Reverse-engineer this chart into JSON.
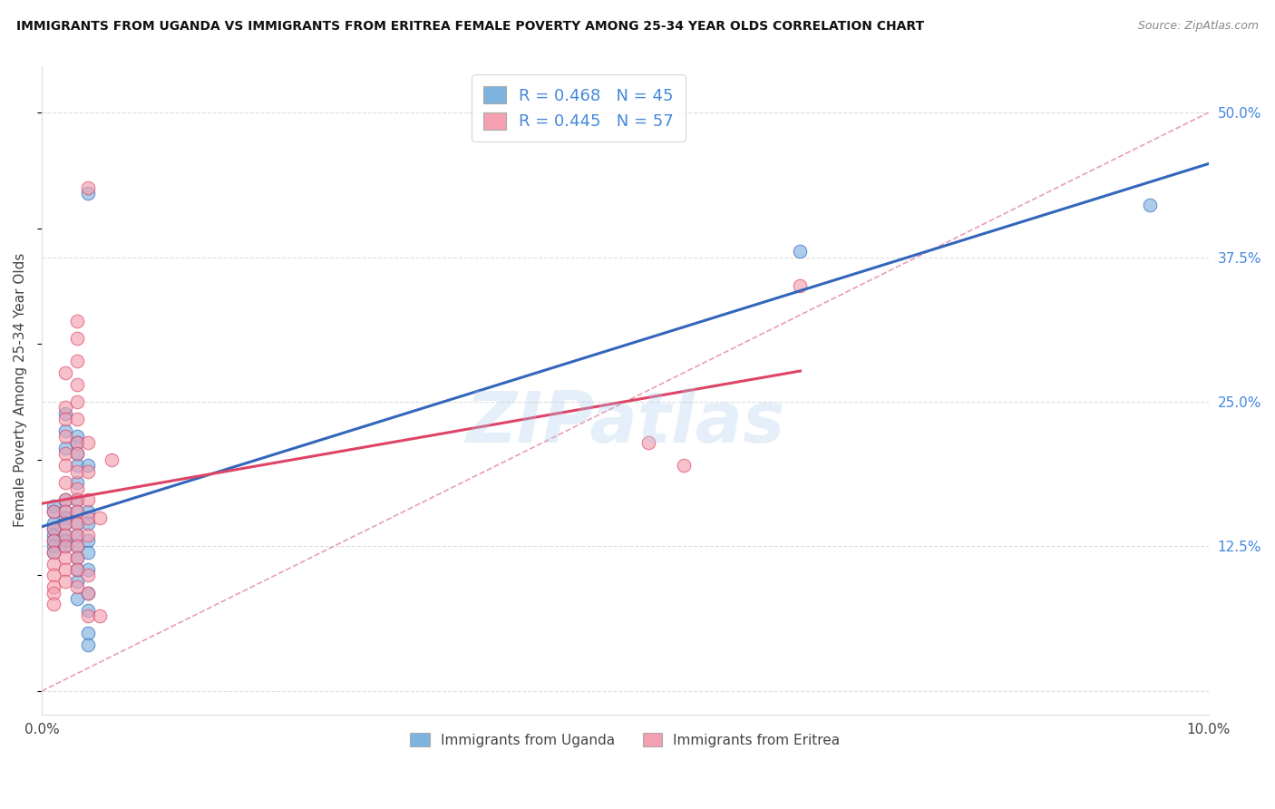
{
  "title": "IMMIGRANTS FROM UGANDA VS IMMIGRANTS FROM ERITREA FEMALE POVERTY AMONG 25-34 YEAR OLDS CORRELATION CHART",
  "source": "Source: ZipAtlas.com",
  "ylabel": "Female Poverty Among 25-34 Year Olds",
  "xlim": [
    0.0,
    0.1
  ],
  "ylim": [
    -0.02,
    0.54
  ],
  "uganda_color": "#7EB3E0",
  "eritrea_color": "#F4A0B0",
  "uganda_line_color": "#3366BB",
  "eritrea_line_color": "#DD4466",
  "diag_color": "#DDAAAA",
  "background_color": "#FFFFFF",
  "watermark": "ZIPatlas",
  "legend_uganda_R": 0.468,
  "legend_uganda_N": 45,
  "legend_eritrea_R": 0.445,
  "legend_eritrea_N": 57,
  "uganda_points": [
    [
      0.001,
      0.16
    ],
    [
      0.001,
      0.155
    ],
    [
      0.001,
      0.145
    ],
    [
      0.001,
      0.14
    ],
    [
      0.001,
      0.135
    ],
    [
      0.001,
      0.13
    ],
    [
      0.001,
      0.125
    ],
    [
      0.001,
      0.12
    ],
    [
      0.002,
      0.24
    ],
    [
      0.002,
      0.225
    ],
    [
      0.002,
      0.21
    ],
    [
      0.002,
      0.165
    ],
    [
      0.002,
      0.155
    ],
    [
      0.002,
      0.15
    ],
    [
      0.002,
      0.145
    ],
    [
      0.002,
      0.135
    ],
    [
      0.002,
      0.13
    ],
    [
      0.002,
      0.125
    ],
    [
      0.003,
      0.22
    ],
    [
      0.003,
      0.215
    ],
    [
      0.003,
      0.205
    ],
    [
      0.003,
      0.195
    ],
    [
      0.003,
      0.18
    ],
    [
      0.003,
      0.165
    ],
    [
      0.003,
      0.155
    ],
    [
      0.003,
      0.145
    ],
    [
      0.003,
      0.135
    ],
    [
      0.003,
      0.125
    ],
    [
      0.003,
      0.115
    ],
    [
      0.003,
      0.105
    ],
    [
      0.003,
      0.095
    ],
    [
      0.003,
      0.08
    ],
    [
      0.004,
      0.43
    ],
    [
      0.004,
      0.195
    ],
    [
      0.004,
      0.155
    ],
    [
      0.004,
      0.145
    ],
    [
      0.004,
      0.13
    ],
    [
      0.004,
      0.12
    ],
    [
      0.004,
      0.105
    ],
    [
      0.004,
      0.085
    ],
    [
      0.004,
      0.07
    ],
    [
      0.004,
      0.05
    ],
    [
      0.004,
      0.04
    ],
    [
      0.065,
      0.38
    ],
    [
      0.095,
      0.42
    ]
  ],
  "eritrea_points": [
    [
      0.001,
      0.155
    ],
    [
      0.001,
      0.14
    ],
    [
      0.001,
      0.13
    ],
    [
      0.001,
      0.12
    ],
    [
      0.001,
      0.11
    ],
    [
      0.001,
      0.1
    ],
    [
      0.001,
      0.09
    ],
    [
      0.001,
      0.085
    ],
    [
      0.001,
      0.075
    ],
    [
      0.002,
      0.275
    ],
    [
      0.002,
      0.245
    ],
    [
      0.002,
      0.235
    ],
    [
      0.002,
      0.22
    ],
    [
      0.002,
      0.205
    ],
    [
      0.002,
      0.195
    ],
    [
      0.002,
      0.18
    ],
    [
      0.002,
      0.165
    ],
    [
      0.002,
      0.155
    ],
    [
      0.002,
      0.145
    ],
    [
      0.002,
      0.135
    ],
    [
      0.002,
      0.125
    ],
    [
      0.002,
      0.115
    ],
    [
      0.002,
      0.105
    ],
    [
      0.002,
      0.095
    ],
    [
      0.003,
      0.32
    ],
    [
      0.003,
      0.305
    ],
    [
      0.003,
      0.285
    ],
    [
      0.003,
      0.265
    ],
    [
      0.003,
      0.25
    ],
    [
      0.003,
      0.235
    ],
    [
      0.003,
      0.215
    ],
    [
      0.003,
      0.205
    ],
    [
      0.003,
      0.19
    ],
    [
      0.003,
      0.175
    ],
    [
      0.003,
      0.165
    ],
    [
      0.003,
      0.155
    ],
    [
      0.003,
      0.145
    ],
    [
      0.003,
      0.135
    ],
    [
      0.003,
      0.125
    ],
    [
      0.003,
      0.115
    ],
    [
      0.003,
      0.105
    ],
    [
      0.003,
      0.09
    ],
    [
      0.004,
      0.435
    ],
    [
      0.004,
      0.215
    ],
    [
      0.004,
      0.19
    ],
    [
      0.004,
      0.165
    ],
    [
      0.004,
      0.15
    ],
    [
      0.004,
      0.135
    ],
    [
      0.004,
      0.1
    ],
    [
      0.004,
      0.085
    ],
    [
      0.004,
      0.065
    ],
    [
      0.005,
      0.065
    ],
    [
      0.005,
      0.15
    ],
    [
      0.006,
      0.2
    ],
    [
      0.052,
      0.215
    ],
    [
      0.055,
      0.195
    ],
    [
      0.065,
      0.35
    ]
  ]
}
